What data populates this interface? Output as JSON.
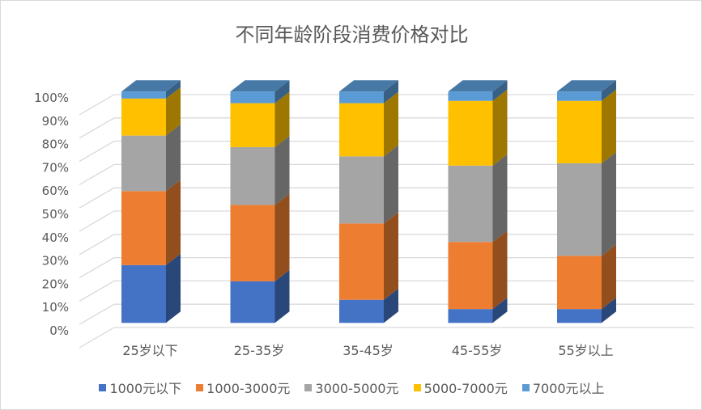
{
  "chart_data": {
    "type": "bar",
    "stacked": "percent",
    "style": "3d",
    "title": "不同年龄阶段消费价格对比",
    "categories": [
      "25岁以下",
      "25-35岁",
      "35-45岁",
      "45-55岁",
      "55岁以上"
    ],
    "series": [
      {
        "name": "1000元以下",
        "color": "#4472C4",
        "values": [
          25,
          18,
          10,
          6,
          6
        ]
      },
      {
        "name": "1000-3000元",
        "color": "#ED7D31",
        "values": [
          32,
          33,
          33,
          29,
          23
        ]
      },
      {
        "name": "3000-5000元",
        "color": "#A5A5A5",
        "values": [
          24,
          25,
          29,
          33,
          40
        ]
      },
      {
        "name": "5000-7000元",
        "color": "#FFC000",
        "values": [
          16,
          19,
          23,
          28,
          27
        ]
      },
      {
        "name": "7000元以上",
        "color": "#5B9BD5",
        "values": [
          3,
          5,
          5,
          4,
          4
        ]
      }
    ],
    "yticks": [
      "0%",
      "10%",
      "20%",
      "30%",
      "40%",
      "50%",
      "60%",
      "70%",
      "80%",
      "90%",
      "100%"
    ],
    "ylim": [
      0,
      100
    ],
    "grid": true,
    "legend": "bottom"
  }
}
